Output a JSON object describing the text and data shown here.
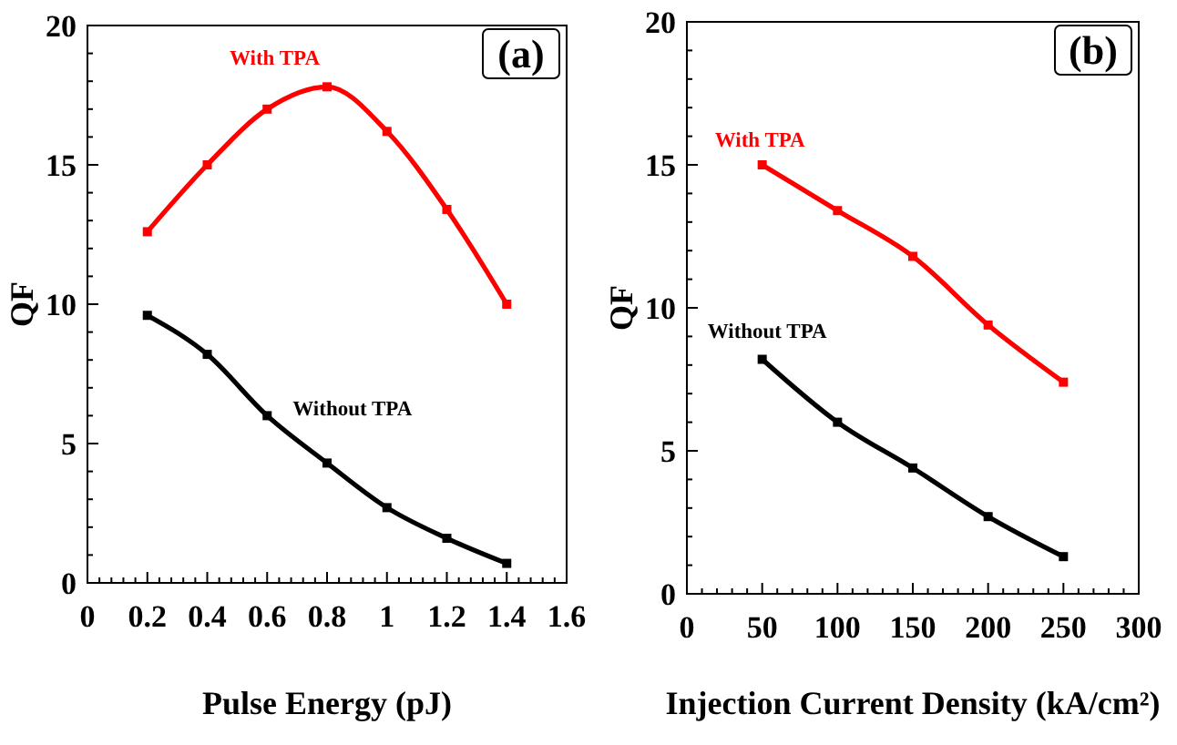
{
  "chart_data": [
    {
      "type": "line",
      "title": "(a)",
      "xlabel": "Pulse Energy (pJ)",
      "ylabel": "QF",
      "x": [
        0.2,
        0.4,
        0.6,
        0.8,
        1,
        1.2,
        1.4
      ],
      "xlim": [
        0,
        1.6
      ],
      "xticks": [
        0,
        0.2,
        0.4,
        0.6,
        0.8,
        1,
        1.2,
        1.4,
        1.6
      ],
      "ylim": [
        0,
        20
      ],
      "yticks": [
        0,
        5,
        10,
        15,
        20
      ],
      "grid": false,
      "marker": "square",
      "series": [
        {
          "name": "With TPA",
          "color": "#ff0000",
          "values": [
            12.6,
            15,
            17,
            17.8,
            16.2,
            13.4,
            10
          ]
        },
        {
          "name": "Without TPA",
          "color": "#000000",
          "values": [
            9.6,
            8.2,
            6,
            4.3,
            2.7,
            1.6,
            0.7
          ]
        }
      ]
    },
    {
      "type": "line",
      "title": "(b)",
      "xlabel": "Injection Current Density (kA/cm²)",
      "ylabel": "QF",
      "x": [
        50,
        100,
        150,
        200,
        250
      ],
      "xlim": [
        0,
        300
      ],
      "xticks": [
        0,
        50,
        100,
        150,
        200,
        250,
        300
      ],
      "ylim": [
        0,
        20
      ],
      "yticks": [
        0,
        5,
        10,
        15,
        20
      ],
      "grid": false,
      "marker": "square",
      "series": [
        {
          "name": "With TPA",
          "color": "#ff0000",
          "values": [
            15,
            13.4,
            11.8,
            9.4,
            7.4
          ]
        },
        {
          "name": "Without TPA",
          "color": "#000000",
          "values": [
            8.2,
            6,
            4.4,
            2.7,
            1.3
          ]
        }
      ]
    }
  ]
}
